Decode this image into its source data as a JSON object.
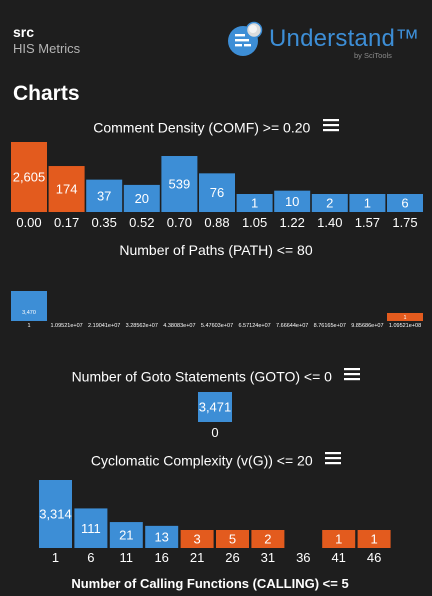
{
  "header": {
    "project": "src",
    "subtitle": "HIS Metrics",
    "brand_name": "Understand™",
    "brand_by": "by SciTools"
  },
  "section_title": "Charts",
  "colors": {
    "blue": "#3d8ed6",
    "orange": "#e35b1e",
    "bg": "#1e1e1e"
  },
  "chart_data": [
    {
      "type": "bar",
      "title": "Comment Density (COMF) >= 0.20",
      "categories": [
        "0.00",
        "0.17",
        "0.35",
        "0.52",
        "0.70",
        "0.88",
        "1.05",
        "1.22",
        "1.40",
        "1.57",
        "1.75"
      ],
      "values": [
        2605,
        174,
        37,
        20,
        539,
        76,
        1,
        10,
        2,
        1,
        6
      ],
      "labels": [
        "2,605",
        "174",
        "37",
        "20",
        "539",
        "76",
        "1",
        "10",
        "2",
        "1",
        "6"
      ],
      "colors": [
        "orange",
        "orange",
        "blue",
        "blue",
        "blue",
        "blue",
        "blue",
        "blue",
        "blue",
        "blue",
        "blue"
      ],
      "scale": "log"
    },
    {
      "type": "bar",
      "title": "Number of Paths (PATH) <= 80",
      "categories": [
        "1",
        "1.09521e+07",
        "2.19041e+07",
        "3.28562e+07",
        "4.38083e+07",
        "5.47603e+07",
        "6.57124e+07",
        "7.66644e+07",
        "8.76165e+07",
        "9.85686e+07",
        "1.09521e+08"
      ],
      "values": [
        3470,
        0,
        0,
        0,
        0,
        0,
        0,
        0,
        0,
        0,
        1
      ],
      "labels": [
        "3,470",
        "",
        "",
        "",
        "",
        "",
        "",
        "",
        "",
        "",
        "1"
      ],
      "colors": [
        "blue",
        "blue",
        "blue",
        "blue",
        "blue",
        "blue",
        "blue",
        "blue",
        "blue",
        "blue",
        "orange"
      ],
      "scale": "log"
    },
    {
      "type": "bar",
      "title": "Number of Goto Statements (GOTO) <= 0",
      "categories": [
        "0"
      ],
      "values": [
        3471
      ],
      "labels": [
        "3,471"
      ],
      "colors": [
        "blue"
      ]
    },
    {
      "type": "bar",
      "title": "Cyclomatic Complexity (v(G)) <= 20",
      "categories": [
        "1",
        "6",
        "11",
        "16",
        "21",
        "26",
        "31",
        "36",
        "41",
        "46"
      ],
      "values": [
        3314,
        111,
        21,
        13,
        3,
        5,
        2,
        0,
        1,
        1
      ],
      "labels": [
        "3,314",
        "111",
        "21",
        "13",
        "3",
        "5",
        "2",
        "",
        "1",
        "1"
      ],
      "colors": [
        "blue",
        "blue",
        "blue",
        "blue",
        "orange",
        "orange",
        "orange",
        "blue",
        "orange",
        "orange"
      ],
      "scale": "log"
    },
    {
      "type": "bar",
      "title": "Number of Calling Functions (CALLING) <= 5",
      "categories": [],
      "values": []
    }
  ]
}
